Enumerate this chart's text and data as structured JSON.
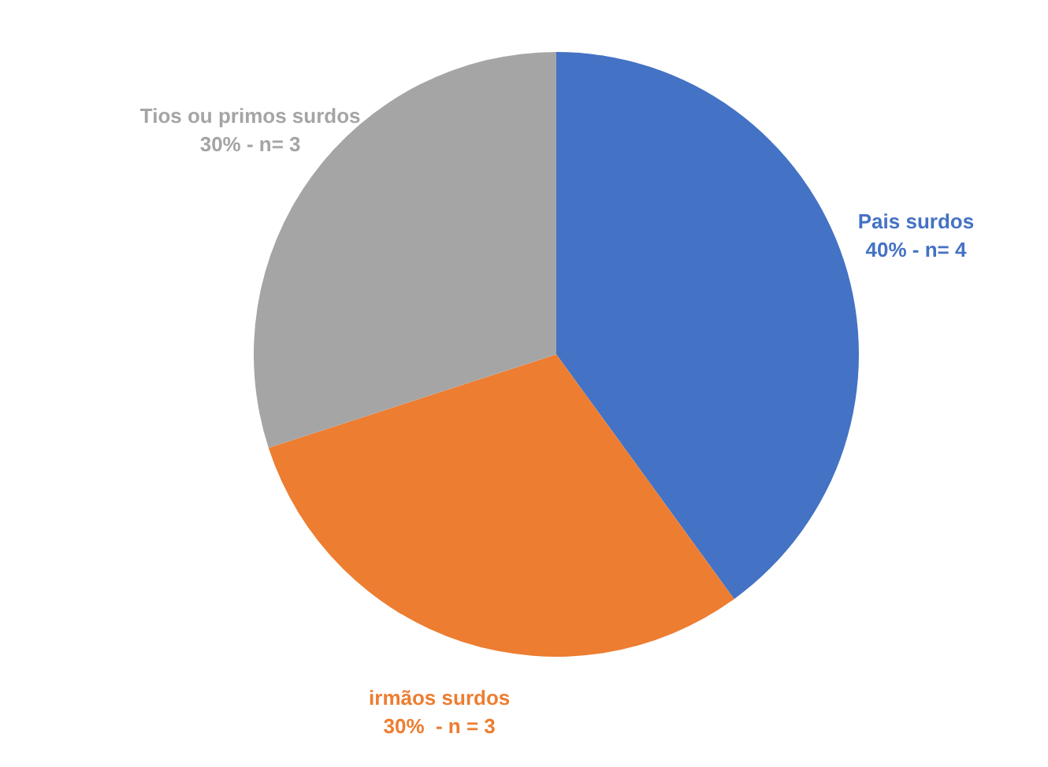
{
  "chart_data": {
    "type": "pie",
    "categories": [
      "Pais surdos",
      "irmãos surdos",
      "Tios ou primos surdos"
    ],
    "values": [
      40,
      30,
      30
    ],
    "colors": [
      "#4472c4",
      "#ed7d31",
      "#a5a5a5"
    ],
    "value_labels": [
      "40% - n= 4",
      "30%  - n = 3",
      "30% - n= 3"
    ],
    "legend": false
  }
}
